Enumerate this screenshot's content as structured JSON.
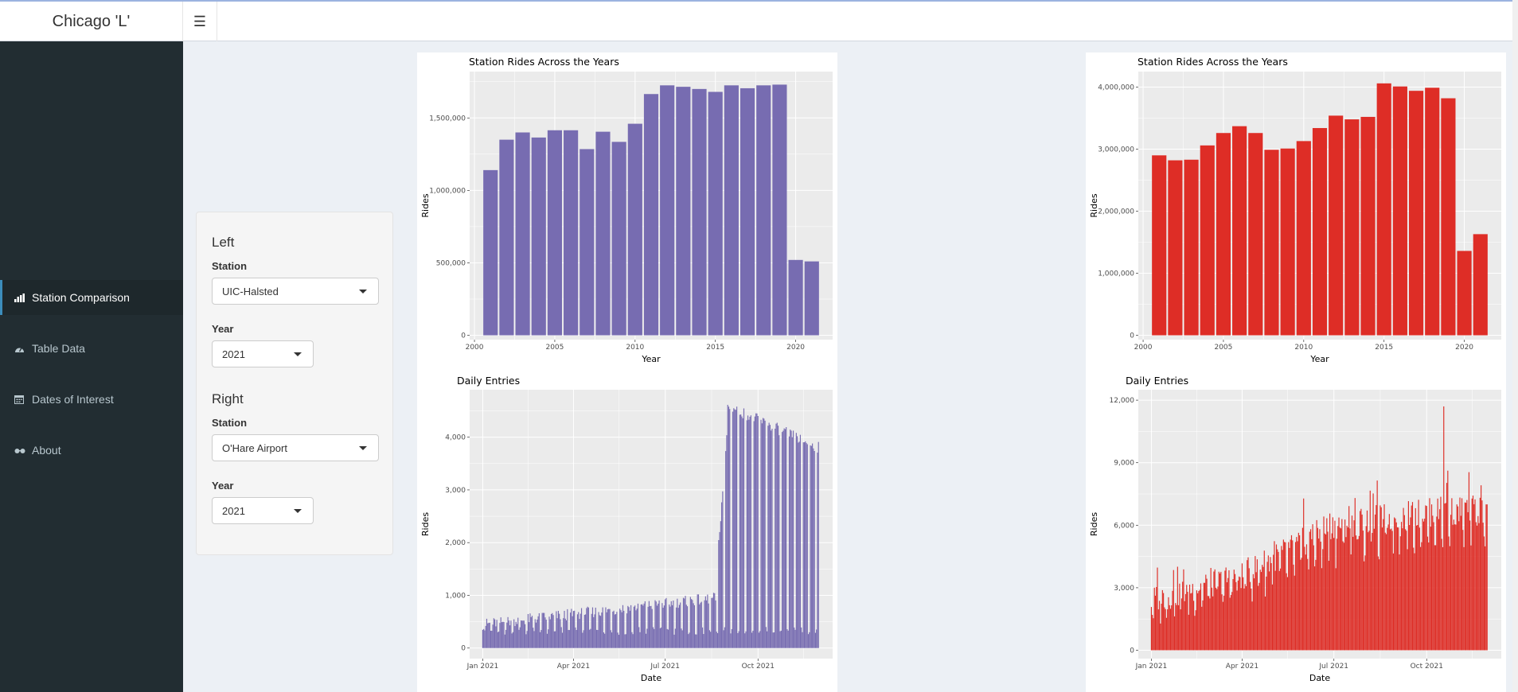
{
  "app": {
    "title": "Chicago 'L'"
  },
  "sidebar": {
    "items": [
      {
        "label": "Station Comparison",
        "icon": "bar-chart-icon",
        "active": true
      },
      {
        "label": "Table Data",
        "icon": "dashboard-icon",
        "active": false
      },
      {
        "label": "Dates of Interest",
        "icon": "calendar-icon",
        "active": false
      },
      {
        "label": "About",
        "icon": "glasses-icon",
        "active": false
      }
    ]
  },
  "controls": {
    "left": {
      "heading": "Left",
      "station_label": "Station",
      "station_value": "UIC-Halsted",
      "year_label": "Year",
      "year_value": "2021"
    },
    "right": {
      "heading": "Right",
      "station_label": "Station",
      "station_value": "O'Hare Airport",
      "year_label": "Year",
      "year_value": "2021"
    }
  },
  "colors": {
    "left_series": "#776cb1",
    "right_series": "#de2d26",
    "panel_bg": "#ebebeb",
    "sidebar_bg": "#222d32"
  },
  "chart_data": [
    {
      "type": "bar",
      "title": "Station Rides Across the Years",
      "xlabel": "Year",
      "ylabel": "Rides",
      "x": [
        2001,
        2002,
        2003,
        2004,
        2005,
        2006,
        2007,
        2008,
        2009,
        2010,
        2011,
        2012,
        2013,
        2014,
        2015,
        2016,
        2017,
        2018,
        2019,
        2020,
        2021
      ],
      "values": [
        1140000,
        1350000,
        1400000,
        1365000,
        1415000,
        1415000,
        1285000,
        1405000,
        1335000,
        1460000,
        1665000,
        1725000,
        1715000,
        1700000,
        1680000,
        1725000,
        1705000,
        1725000,
        1730000,
        520000,
        510000
      ],
      "xlim": [
        1999.7,
        2022.3
      ],
      "ylim": [
        -30000,
        1820000
      ],
      "xticks": [
        2000,
        2005,
        2010,
        2015,
        2020
      ],
      "yticks": [
        0,
        500000,
        1000000,
        1500000
      ],
      "ytick_labels": [
        "0",
        "500,000",
        "1,000,000",
        "1,500,000"
      ],
      "grid": true
    },
    {
      "type": "bar",
      "title": "Daily Entries",
      "xlabel": "Date",
      "ylabel": "Rides",
      "x_range": [
        "2021-01-01",
        "2021-11-30"
      ],
      "approximate_weekly_pattern": {
        "weekday_levels": [
          {
            "from": "2021-01-01",
            "to": "2021-08-20",
            "start": 450,
            "end": 950
          },
          {
            "from": "2021-08-21",
            "to": "2021-08-31",
            "start": 1500,
            "end": 4000
          },
          {
            "from": "2021-09-01",
            "to": "2021-11-30",
            "start": 4600,
            "end": 3800
          }
        ],
        "weekend_level": 250
      },
      "ylim": [
        -200,
        4900
      ],
      "yticks": [
        0,
        1000,
        2000,
        3000,
        4000
      ],
      "ytick_labels": [
        "0",
        "1,000",
        "2,000",
        "3,000",
        "4,000"
      ],
      "xtick_labels": [
        "Jan 2021",
        "Apr 2021",
        "Jul 2021",
        "Oct 2021"
      ],
      "grid": true
    },
    {
      "type": "bar",
      "title": "Station Rides Across the Years",
      "xlabel": "Year",
      "ylabel": "Rides",
      "x": [
        2001,
        2002,
        2003,
        2004,
        2005,
        2006,
        2007,
        2008,
        2009,
        2010,
        2011,
        2012,
        2013,
        2014,
        2015,
        2016,
        2017,
        2018,
        2019,
        2020,
        2021
      ],
      "values": [
        2900000,
        2820000,
        2830000,
        3060000,
        3260000,
        3370000,
        3260000,
        2990000,
        3010000,
        3130000,
        3340000,
        3540000,
        3480000,
        3520000,
        4060000,
        4010000,
        3940000,
        3990000,
        3820000,
        1360000,
        1630000
      ],
      "xlim": [
        1999.7,
        2022.3
      ],
      "ylim": [
        -70000,
        4250000
      ],
      "xticks": [
        2000,
        2005,
        2010,
        2015,
        2020
      ],
      "yticks": [
        0,
        1000000,
        2000000,
        3000000,
        4000000
      ],
      "ytick_labels": [
        "0",
        "1,000,000",
        "2,000,000",
        "3,000,000",
        "4,000,000"
      ],
      "grid": true
    },
    {
      "type": "bar",
      "title": "Daily Entries",
      "xlabel": "Date",
      "ylabel": "Rides",
      "x_range": [
        "2021-01-01",
        "2021-11-30"
      ],
      "approximate_trend": [
        {
          "date": "2021-01-01",
          "weekday": 2400,
          "weekend": 1800
        },
        {
          "date": "2021-04-01",
          "weekday": 3600,
          "weekend": 2800
        },
        {
          "date": "2021-07-01",
          "weekday": 6000,
          "weekend": 4600
        },
        {
          "date": "2021-10-01",
          "weekday": 6600,
          "weekend": 5400
        },
        {
          "date": "2021-11-30",
          "weekday": 6800,
          "weekend": 5600
        }
      ],
      "peak": {
        "date": "2021-10-18",
        "value": 11700
      },
      "ylim": [
        -400,
        12500
      ],
      "yticks": [
        0,
        3000,
        6000,
        9000,
        12000
      ],
      "ytick_labels": [
        "0",
        "3,000",
        "6,000",
        "9,000",
        "12,000"
      ],
      "xtick_labels": [
        "Jan 2021",
        "Apr 2021",
        "Jul 2021",
        "Oct 2021"
      ],
      "grid": true
    }
  ]
}
